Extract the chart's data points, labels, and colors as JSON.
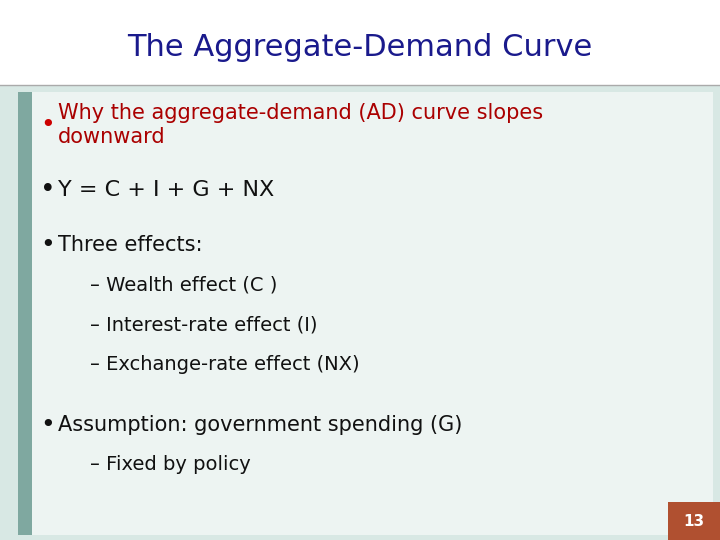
{
  "title": "The Aggregate-Demand Curve",
  "title_color": "#1a1a8c",
  "title_fontsize": 22,
  "background_color": "#ffffff",
  "content_bg_color": "#d8e8e4",
  "left_bar_color": "#7fa8a0",
  "bullet_items": [
    {
      "text": "Why the aggregate-demand (AD) curve slopes\ndownward",
      "color": "#aa0000",
      "fontsize": 15,
      "indent": 0,
      "bullet": true,
      "bullet_color": "#cc0000"
    },
    {
      "text": "Y = C + I + G + NX",
      "color": "#111111",
      "fontsize": 16,
      "indent": 0,
      "bullet": true,
      "bullet_color": "#111111"
    },
    {
      "text": "Three effects:",
      "color": "#111111",
      "fontsize": 15,
      "indent": 0,
      "bullet": true,
      "bullet_color": "#111111"
    },
    {
      "text": "– Wealth effect (C )",
      "color": "#111111",
      "fontsize": 14,
      "indent": 1,
      "bullet": false,
      "bullet_color": "#111111"
    },
    {
      "text": "– Interest-rate effect (I)",
      "color": "#111111",
      "fontsize": 14,
      "indent": 1,
      "bullet": false,
      "bullet_color": "#111111"
    },
    {
      "text": "– Exchange-rate effect (NX)",
      "color": "#111111",
      "fontsize": 14,
      "indent": 1,
      "bullet": false,
      "bullet_color": "#111111"
    },
    {
      "text": "Assumption: government spending (G)",
      "color": "#111111",
      "fontsize": 15,
      "indent": 0,
      "bullet": true,
      "bullet_color": "#111111"
    },
    {
      "text": "– Fixed by policy",
      "color": "#111111",
      "fontsize": 14,
      "indent": 1,
      "bullet": false,
      "bullet_color": "#111111"
    }
  ],
  "page_number": "13",
  "page_number_bg": "#b05030",
  "fig_width": 7.2,
  "fig_height": 5.4,
  "dpi": 100
}
